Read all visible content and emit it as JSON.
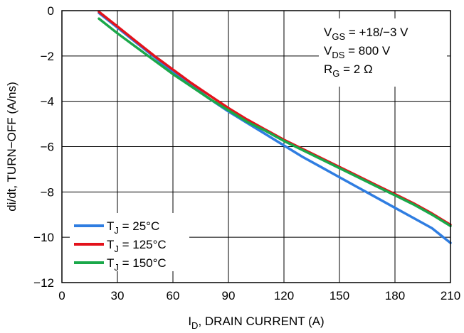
{
  "chart_data": {
    "type": "line",
    "title": "",
    "xlabel": {
      "main": "I",
      "sub": "D",
      "rest": ", DRAIN CURRENT (A)"
    },
    "ylabel": "di/dt, TURN−OFF (A/ns)",
    "xlim": [
      0,
      210
    ],
    "ylim": [
      -12,
      0
    ],
    "x_ticks": [
      0,
      30,
      60,
      90,
      120,
      150,
      180,
      210
    ],
    "y_ticks": [
      0,
      -2,
      -4,
      -6,
      -8,
      -10,
      -12
    ],
    "y_tick_labels": [
      "0",
      "−2",
      "−4",
      "−6",
      "−8",
      "−10",
      "−12"
    ],
    "grid": true,
    "legend_position": "bottom-left",
    "conditions": [
      {
        "main": "V",
        "sub": "GS",
        "rest": " = +18/−3 V"
      },
      {
        "main": "V",
        "sub": "DS",
        "rest": " = 800 V"
      },
      {
        "main": "R",
        "sub": "G",
        "rest": " = 2 Ω"
      }
    ],
    "series": [
      {
        "name": {
          "main": "T",
          "sub": "J",
          "rest": " = 25°C"
        },
        "color": "#2f7de1",
        "x": [
          20,
          30,
          40,
          50,
          60,
          70,
          80,
          90,
          100,
          110,
          120,
          130,
          140,
          150,
          160,
          170,
          180,
          190,
          200,
          210
        ],
        "y": [
          -0.1,
          -0.75,
          -1.4,
          -2.05,
          -2.7,
          -3.3,
          -3.9,
          -4.45,
          -4.95,
          -5.45,
          -5.95,
          -6.45,
          -6.9,
          -7.35,
          -7.8,
          -8.25,
          -8.7,
          -9.15,
          -9.6,
          -10.25
        ]
      },
      {
        "name": {
          "main": "T",
          "sub": "J",
          "rest": " = 125°C"
        },
        "color": "#e3121b",
        "x": [
          20,
          30,
          40,
          50,
          60,
          70,
          80,
          90,
          100,
          110,
          120,
          130,
          140,
          150,
          160,
          170,
          180,
          190,
          200,
          210
        ],
        "y": [
          -0.05,
          -0.7,
          -1.35,
          -2.0,
          -2.6,
          -3.2,
          -3.75,
          -4.3,
          -4.8,
          -5.25,
          -5.7,
          -6.1,
          -6.5,
          -6.9,
          -7.3,
          -7.7,
          -8.1,
          -8.5,
          -8.95,
          -9.45
        ]
      },
      {
        "name": {
          "main": "T",
          "sub": "J",
          "rest": " = 150°C"
        },
        "color": "#1aa84a",
        "x": [
          20,
          30,
          40,
          50,
          60,
          70,
          80,
          90,
          100,
          110,
          120,
          130,
          140,
          150,
          160,
          170,
          180,
          190,
          200,
          210
        ],
        "y": [
          -0.35,
          -1.0,
          -1.6,
          -2.2,
          -2.8,
          -3.35,
          -3.9,
          -4.4,
          -4.9,
          -5.3,
          -5.75,
          -6.15,
          -6.55,
          -6.95,
          -7.35,
          -7.75,
          -8.15,
          -8.55,
          -9.0,
          -9.5
        ]
      }
    ]
  }
}
